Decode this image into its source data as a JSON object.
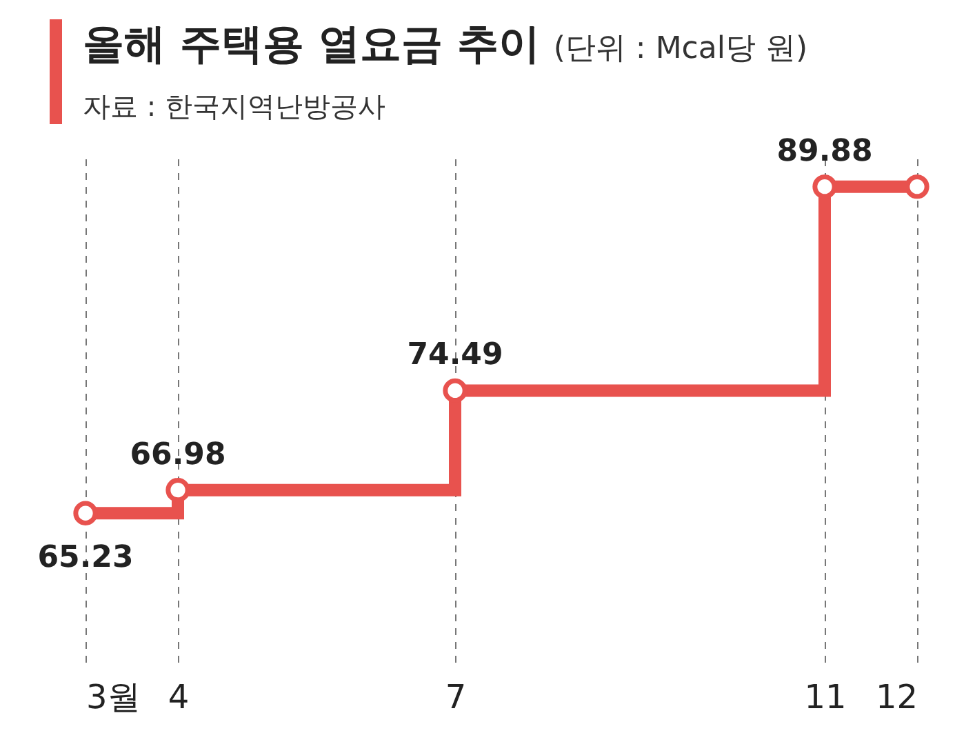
{
  "chart_data": {
    "type": "step",
    "title": "올해 주택용 열요금 추이",
    "ylabel": "(단위 : Mcal당 원)",
    "annotations": [
      "자료 : 한국지역난방공사"
    ],
    "x": [
      3,
      4,
      7,
      11,
      12
    ],
    "series": [
      {
        "color": "#e8524e",
        "values": [
          65.23,
          66.98,
          74.49,
          89.88,
          89.88
        ],
        "value_labels": [
          "65.23",
          "66.98",
          "74.49",
          "89.88",
          null
        ]
      }
    ],
    "xlim": [
      3,
      12
    ],
    "xticks": [
      {
        "value": 3,
        "label": "3월"
      },
      4,
      7,
      11,
      12
    ],
    "ylim": [
      54,
      92
    ],
    "grid": "x",
    "marker": "circle"
  }
}
